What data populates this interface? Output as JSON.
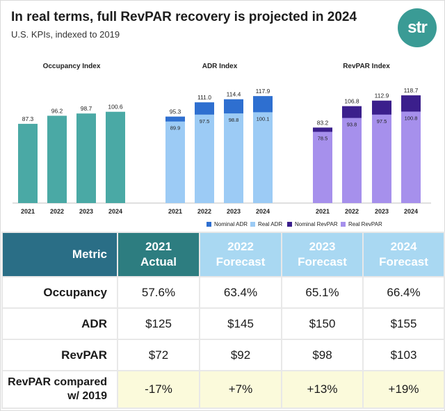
{
  "header": {
    "title": "In real terms, full RevPAR recovery is projected in 2024",
    "subtitle": "U.S. KPIs, indexed to 2019",
    "logo_text": "str"
  },
  "chart_data": [
    {
      "type": "bar",
      "title": "Occupancy Index",
      "categories": [
        "2021",
        "2022",
        "2023",
        "2024"
      ],
      "series": [
        {
          "values": [
            87.3,
            96.2,
            98.7,
            100.6
          ],
          "color": "#4aa9a5"
        }
      ]
    },
    {
      "type": "bar",
      "title": "ADR Index",
      "categories": [
        "2021",
        "2022",
        "2023",
        "2024"
      ],
      "series": [
        {
          "name": "Nominal ADR",
          "values": [
            95.3,
            111.0,
            114.4,
            117.9
          ],
          "color": "#2e6fd0"
        },
        {
          "name": "Real ADR",
          "values": [
            89.9,
            97.5,
            98.8,
            100.1
          ],
          "color": "#9ccbf5"
        }
      ]
    },
    {
      "type": "bar",
      "title": "RevPAR Index",
      "categories": [
        "2021",
        "2022",
        "2023",
        "2024"
      ],
      "series": [
        {
          "name": "Nominal RevPAR",
          "values": [
            83.2,
            106.8,
            112.9,
            118.7
          ],
          "color": "#3b1f8c"
        },
        {
          "name": "Real RevPAR",
          "values": [
            78.5,
            93.8,
            97.5,
            100.8
          ],
          "color": "#a690ec"
        }
      ]
    }
  ],
  "table": {
    "header": {
      "metric": "Metric",
      "cols": [
        {
          "year": "2021",
          "kind": "Actual"
        },
        {
          "year": "2022",
          "kind": "Forecast"
        },
        {
          "year": "2023",
          "kind": "Forecast"
        },
        {
          "year": "2024",
          "kind": "Forecast"
        }
      ]
    },
    "rows": [
      {
        "label": "Occupancy",
        "values": [
          "57.6%",
          "63.4%",
          "65.1%",
          "66.4%"
        ]
      },
      {
        "label": "ADR",
        "values": [
          "$125",
          "$145",
          "$150",
          "$155"
        ]
      },
      {
        "label": "RevPAR",
        "values": [
          "$72",
          "$92",
          "$98",
          "$103"
        ]
      },
      {
        "label_line1": "RevPAR compared",
        "label_line2": "w/ 2019",
        "values": [
          "-17%",
          "+7%",
          "+13%",
          "+19%"
        ]
      }
    ]
  }
}
